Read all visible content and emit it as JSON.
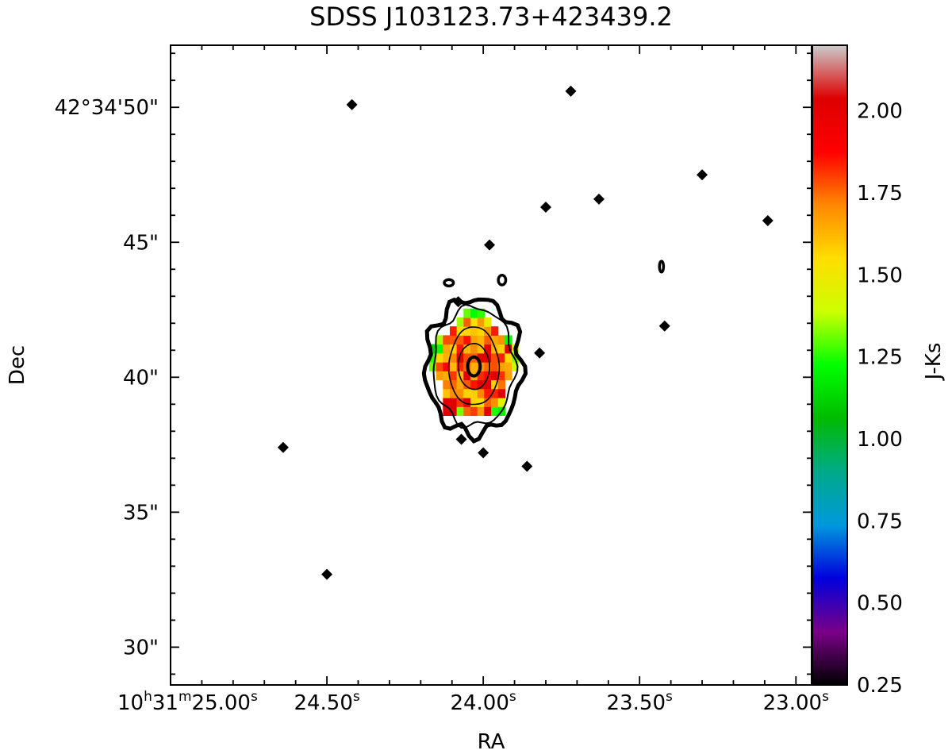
{
  "chart_data": {
    "type": "heatmap",
    "title": "SDSS J103123.73+423439.2",
    "xlabel": "RA",
    "ylabel": "Dec",
    "colorbar_label": "J-Ks",
    "x_ticks": [
      {
        "label": "10h31m25.00s",
        "main": "10",
        "s1": "h",
        "mid": "31",
        "s2": "m",
        "rest": "25.00",
        "s3": "s",
        "ra_s": 25.0
      },
      {
        "label": "24.50s",
        "main": "24.50",
        "s3": "s",
        "ra_s": 24.5
      },
      {
        "label": "24.00s",
        "main": "24.00",
        "s3": "s",
        "ra_s": 24.0
      },
      {
        "label": "23.50s",
        "main": "23.50",
        "s3": "s",
        "ra_s": 23.5
      },
      {
        "label": "23.00s",
        "main": "23.00",
        "s3": "s",
        "ra_s": 23.0
      }
    ],
    "y_ticks": [
      {
        "label": "42°34'50\"",
        "dec_arcsec": 50
      },
      {
        "label": "45\"",
        "dec_arcsec": 45
      },
      {
        "label": "40\"",
        "dec_arcsec": 40
      },
      {
        "label": "35\"",
        "dec_arcsec": 35
      },
      {
        "label": "30\"",
        "dec_arcsec": 30
      }
    ],
    "xlim_ra_seconds": [
      25.0,
      22.95
    ],
    "ylim_dec_arcsec": [
      28.6,
      52.3
    ],
    "colorbar_ticks": [
      "0.25",
      "0.50",
      "0.75",
      "1.00",
      "1.25",
      "1.50",
      "1.75",
      "2.00"
    ],
    "colorbar_range": [
      0.25,
      2.2
    ],
    "colormap": "nipy_spectral",
    "colorbar_stops": [
      "#000000",
      "#7a0088",
      "#0000dd",
      "#0099dd",
      "#00aa88",
      "#00bb00",
      "#00ff00",
      "#ccff00",
      "#ffdd00",
      "#ff8800",
      "#ff0000",
      "#dd0000",
      "#cccccc"
    ],
    "grid": false,
    "source_center": {
      "ra_s": 24.03,
      "dec_arcsec": 40.4
    },
    "markers": [
      {
        "ra_s": 24.42,
        "dec_arcsec": 50.1
      },
      {
        "ra_s": 23.72,
        "dec_arcsec": 50.6
      },
      {
        "ra_s": 23.3,
        "dec_arcsec": 47.5
      },
      {
        "ra_s": 23.63,
        "dec_arcsec": 46.6
      },
      {
        "ra_s": 23.8,
        "dec_arcsec": 46.3
      },
      {
        "ra_s": 23.09,
        "dec_arcsec": 45.8
      },
      {
        "ra_s": 23.98,
        "dec_arcsec": 44.9
      },
      {
        "ra_s": 24.08,
        "dec_arcsec": 42.8
      },
      {
        "ra_s": 23.42,
        "dec_arcsec": 41.9
      },
      {
        "ra_s": 23.82,
        "dec_arcsec": 40.9
      },
      {
        "ra_s": 24.07,
        "dec_arcsec": 37.7
      },
      {
        "ra_s": 24.0,
        "dec_arcsec": 37.2
      },
      {
        "ra_s": 23.86,
        "dec_arcsec": 36.7
      },
      {
        "ra_s": 24.64,
        "dec_arcsec": 37.4
      },
      {
        "ra_s": 24.5,
        "dec_arcsec": 32.7
      }
    ]
  }
}
